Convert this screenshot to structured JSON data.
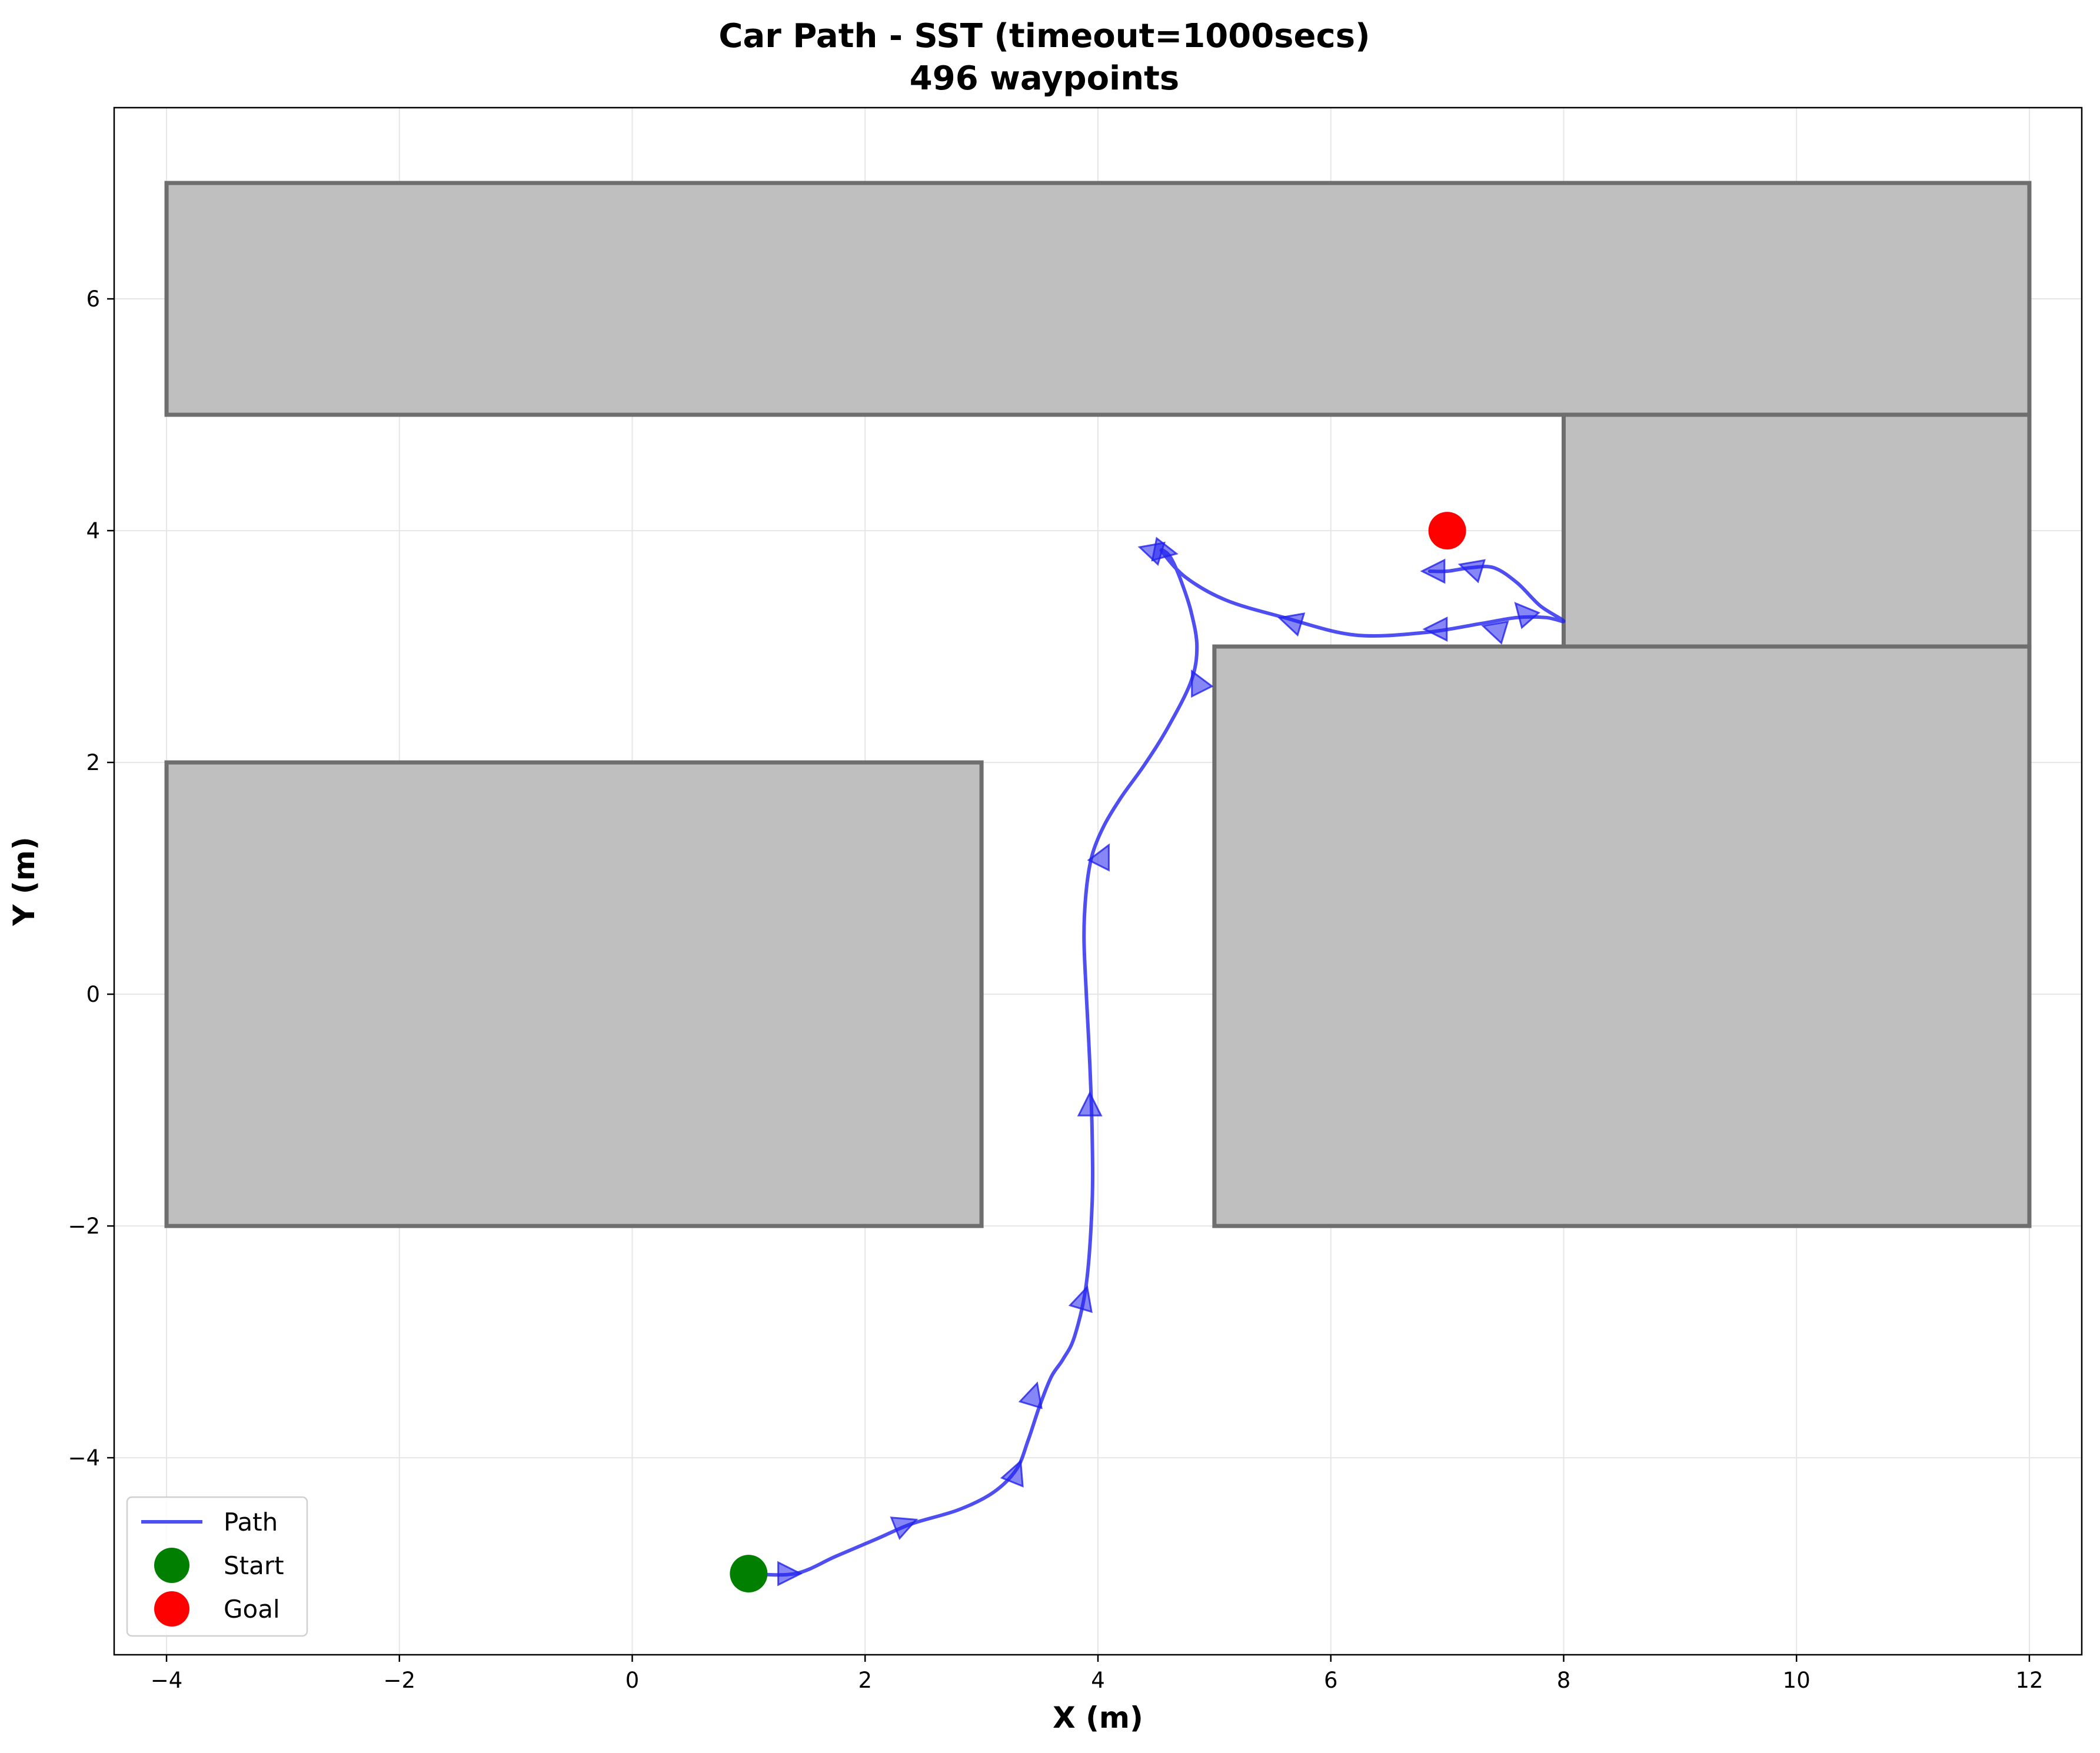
{
  "chart_data": {
    "type": "line",
    "title": "Car Path - SST (timeout=1000secs)",
    "subtitle": "496 waypoints",
    "xlabel": "X (m)",
    "ylabel": "Y (m)",
    "xlim": [
      -4.45,
      12.45
    ],
    "ylim": [
      -5.7,
      7.65
    ],
    "xticks": [
      -4,
      -2,
      0,
      2,
      4,
      6,
      8,
      10,
      12
    ],
    "yticks": [
      -4,
      -2,
      0,
      2,
      4,
      6
    ],
    "xtick_labels": [
      "−4",
      "−2",
      "0",
      "2",
      "4",
      "6",
      "8",
      "10",
      "12"
    ],
    "ytick_labels": [
      "−4",
      "−2",
      "0",
      "2",
      "4",
      "6"
    ],
    "grid": true,
    "legend_position": "lower-left",
    "obstacles": [
      {
        "x": [
          -4,
          12
        ],
        "y": [
          5,
          7
        ]
      },
      {
        "x": [
          8,
          12
        ],
        "y": [
          3,
          5
        ]
      },
      {
        "x": [
          -4,
          3
        ],
        "y": [
          -2,
          2
        ]
      },
      {
        "x": [
          5,
          12
        ],
        "y": [
          -2,
          3
        ]
      }
    ],
    "obstacle_fill": "#bfbfbf",
    "obstacle_edge": "#6e6e6e",
    "series": [
      {
        "name": "Path",
        "color": "#2222ee",
        "x": [
          1.0,
          1.4,
          1.75,
          2.1,
          2.4,
          2.8,
          3.1,
          3.3,
          3.4,
          3.5,
          3.6,
          3.7,
          3.8,
          3.9,
          3.95,
          3.95,
          3.93,
          3.9,
          3.88,
          3.9,
          3.95,
          4.05,
          4.2,
          4.4,
          4.6,
          4.8,
          4.85,
          4.8,
          4.72,
          4.65,
          4.6,
          4.55,
          4.75,
          5.1,
          5.6,
          6.2,
          6.8,
          7.3,
          7.6,
          7.85,
          8.0,
          7.8,
          7.6,
          7.4,
          7.2,
          7.0,
          6.85
        ],
        "y": [
          -5.0,
          -5.0,
          -4.85,
          -4.7,
          -4.57,
          -4.45,
          -4.3,
          -4.1,
          -3.85,
          -3.55,
          -3.3,
          -3.15,
          -2.95,
          -2.5,
          -1.8,
          -1.2,
          -0.6,
          0.0,
          0.5,
          0.9,
          1.2,
          1.45,
          1.7,
          1.98,
          2.3,
          2.7,
          3.0,
          3.3,
          3.55,
          3.72,
          3.8,
          3.82,
          3.6,
          3.4,
          3.25,
          3.1,
          3.12,
          3.2,
          3.25,
          3.25,
          3.22,
          3.35,
          3.55,
          3.68,
          3.68,
          3.65,
          3.65
        ]
      },
      {
        "name": "Start",
        "color": "#007f00",
        "x": [
          1.0
        ],
        "y": [
          -5.0
        ]
      },
      {
        "name": "Goal",
        "color": "#ff0000",
        "x": [
          7.0
        ],
        "y": [
          4.0
        ]
      }
    ],
    "arrows": [
      {
        "x": 1.35,
        "y": -5.0,
        "dx": 1,
        "dy": 0
      },
      {
        "x": 2.35,
        "y": -4.57,
        "dx": 1,
        "dy": 0.4
      },
      {
        "x": 3.3,
        "y": -4.12,
        "dx": 0.4,
        "dy": 1
      },
      {
        "x": 3.45,
        "y": -3.45,
        "dx": 0.3,
        "dy": 1
      },
      {
        "x": 3.88,
        "y": -2.62,
        "dx": 0.3,
        "dy": 1
      },
      {
        "x": 3.93,
        "y": -0.95,
        "dx": 0,
        "dy": 1
      },
      {
        "x": 4.05,
        "y": 1.2,
        "dx": 0.5,
        "dy": 1
      },
      {
        "x": 4.85,
        "y": 2.7,
        "dx": -0.5,
        "dy": 1
      },
      {
        "x": 4.45,
        "y": 3.83,
        "dx": -1,
        "dy": 0.3
      },
      {
        "x": 4.58,
        "y": 3.82,
        "dx": 1,
        "dy": -0.2
      },
      {
        "x": 5.65,
        "y": 3.22,
        "dx": -1,
        "dy": 0.3
      },
      {
        "x": 6.9,
        "y": 3.15,
        "dx": -1,
        "dy": 0
      },
      {
        "x": 7.4,
        "y": 3.15,
        "dx": -1,
        "dy": 0.3
      },
      {
        "x": 7.65,
        "y": 3.3,
        "dx": -0.7,
        "dy": 0.8
      },
      {
        "x": 7.2,
        "y": 3.68,
        "dx": -1,
        "dy": 0.3
      },
      {
        "x": 6.88,
        "y": 3.65,
        "dx": -1,
        "dy": 0
      }
    ]
  }
}
